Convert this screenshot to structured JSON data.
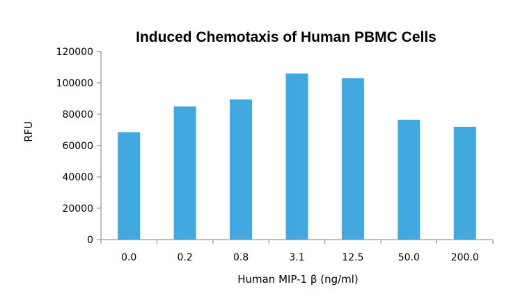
{
  "chart_data": {
    "type": "bar",
    "title": "Induced Chemotaxis of Human PBMC Cells",
    "xlabel": "Human MIP-1 β (ng/ml)",
    "ylabel": "RFU",
    "categories": [
      "0.0",
      "0.2",
      "0.8",
      "3.1",
      "12.5",
      "50.0",
      "200.0"
    ],
    "values": [
      68500,
      85000,
      89500,
      106000,
      103000,
      76500,
      72000
    ],
    "ylim": [
      0,
      120000
    ],
    "yticks": [
      0,
      20000,
      40000,
      60000,
      80000,
      100000,
      120000
    ],
    "ytick_labels": [
      "0",
      "20000",
      "40000",
      "60000",
      "80000",
      "100000",
      "120000"
    ],
    "grid": false,
    "legend": "none",
    "bar_color": "#42a8e0",
    "axis_color": "#808080"
  }
}
